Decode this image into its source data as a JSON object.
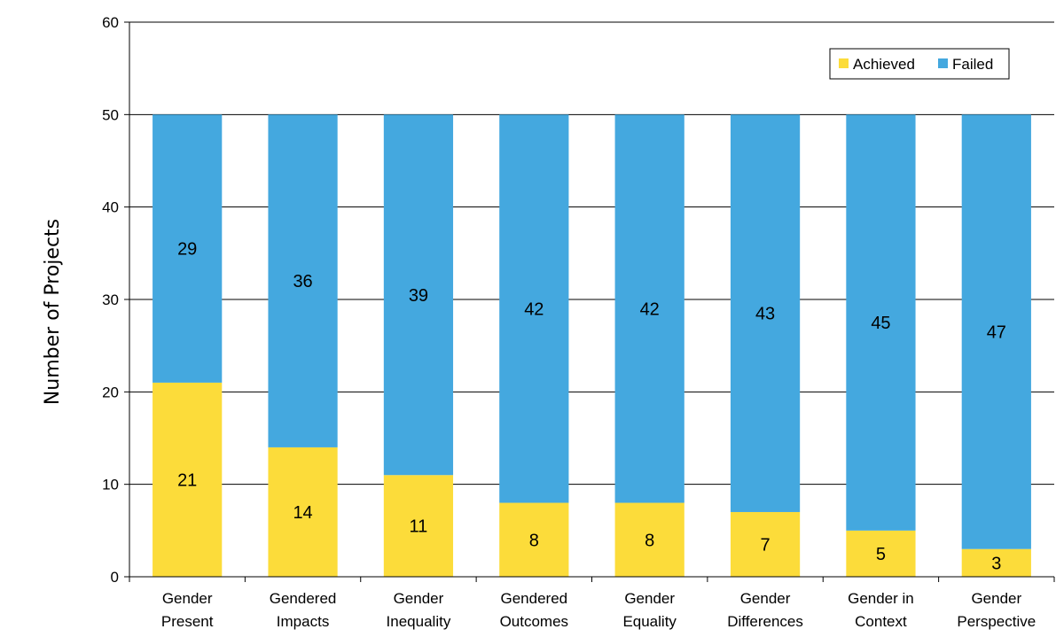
{
  "chart_data": {
    "type": "bar",
    "stacked": true,
    "title": "",
    "xlabel": "",
    "ylabel": "Number of Projects",
    "ylim": [
      0,
      60
    ],
    "yticks": [
      0,
      10,
      20,
      30,
      40,
      50,
      60
    ],
    "grid": true,
    "legend_position": "top-right",
    "categories": [
      [
        "Gender",
        "Present"
      ],
      [
        "Gendered",
        "Impacts"
      ],
      [
        "Gender",
        "Inequality"
      ],
      [
        "Gendered",
        "Outcomes"
      ],
      [
        "Gender",
        "Equality"
      ],
      [
        "Gender",
        "Differences"
      ],
      [
        "Gender in",
        "Context"
      ],
      [
        "Gender",
        "Perspective"
      ]
    ],
    "series": [
      {
        "name": "Achieved",
        "color": "#FCDC3A",
        "values": [
          21,
          14,
          11,
          8,
          8,
          7,
          5,
          3
        ]
      },
      {
        "name": "Failed",
        "color": "#44A8DF",
        "values": [
          29,
          36,
          39,
          42,
          42,
          43,
          45,
          47
        ]
      }
    ]
  }
}
